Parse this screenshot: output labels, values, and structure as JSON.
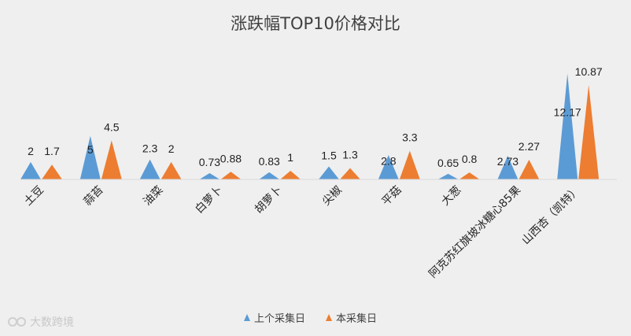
{
  "watermark": "大数跨境",
  "chart_data": {
    "type": "area",
    "title": "涨跌幅TOP10价格对比",
    "categories": [
      "土豆",
      "蒜苔",
      "油菜",
      "白萝卜",
      "胡萝卜",
      "尖椒",
      "平菇",
      "大葱",
      "阿克苏红旗坡冰糖心85果",
      "山西杏（凯特）"
    ],
    "series": [
      {
        "name": "上个采集日",
        "color": "#5b9bd5",
        "values": [
          2,
          5,
          2.3,
          0.73,
          0.83,
          1.5,
          2.8,
          0.65,
          2.73,
          12.17
        ]
      },
      {
        "name": "本采集日",
        "color": "#ed7d31",
        "values": [
          1.7,
          4.5,
          2,
          0.88,
          1,
          1.3,
          3.3,
          0.8,
          2.27,
          10.87
        ]
      }
    ],
    "ylim": [
      0,
      12.5
    ],
    "grid": false,
    "legend": "bottom",
    "xlabel": "",
    "ylabel": ""
  }
}
